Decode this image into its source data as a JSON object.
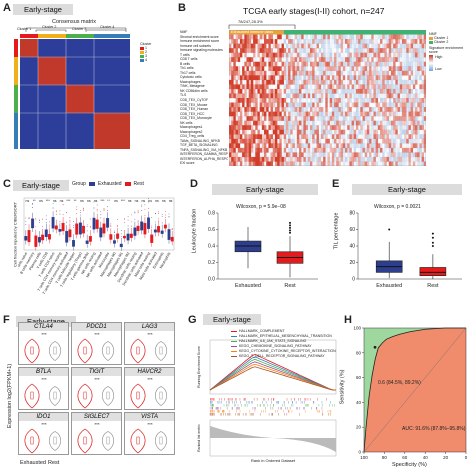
{
  "panels": {
    "A": {
      "letter": "A",
      "badge": "Early-stage",
      "title": "Consensus matrix",
      "clusters": [
        "Cluster 1",
        "Cluster 2",
        "Cluster 3",
        "Cluster 4"
      ],
      "legend_title": "Cluster",
      "legend_items": [
        "1",
        "2",
        "3",
        "4"
      ],
      "legend_colors": [
        "#e41a1c",
        "#f0b01a",
        "#4daf4a",
        "#377eb8"
      ]
    },
    "B": {
      "letter": "B",
      "title": "TCGA early stages(I-II) cohort, n=247",
      "bracket_label": "78/247,28.3%",
      "group_label": "Exhausted immune class",
      "rows": [
        "NMF",
        "Stromal enrichment score",
        "Immune enrichment score",
        "Immune cell subsets",
        "Immune signaling molecules",
        "T cells",
        "CD8 T cells",
        "B cells",
        "Th1 cells",
        "Th17 cells",
        "Cytotoxic cells",
        "Macrophages",
        "T/NK, Metagene",
        "NK CD56dim cells",
        "TLS",
        "CD8_TEX_CyTOF",
        "CD8_TEX_Mouse",
        "CD8_TEX_Human",
        "CD8_TEX_HCC",
        "CD8_TEX_Monocyte",
        "NK cells",
        "Macrophages1",
        "Macrophages2",
        "CD4_Treg_cells",
        "TAMs_SIGNALING_NFKB",
        "TGF_BETA_SIGNALING",
        "TNFA_SIGNALING_VIA_NFKB",
        "INTERFERON_GAMMA_RESPONSE",
        "INTERFERON_ALPHA_RESPONSE",
        "EXi score"
      ],
      "legend": {
        "nmf_title": "NMF",
        "nmf_items": [
          "Cluster 1",
          "Cluster 2"
        ],
        "sig_title": "Signature enrichment score",
        "high": "High",
        "low": "Low"
      }
    },
    "C": {
      "letter": "C",
      "badge": "Early-stage",
      "ylabel": "Cell fraction inputed by CIBERSORT",
      "legend_prefix": "Group",
      "legend_exhausted": "Exhausted",
      "legend_rest": "Rest",
      "cells": [
        "B cells naive",
        "B cells memory",
        "Plasma cells",
        "T cells CD8",
        "T cells CD4 naive",
        "T cells CD4 memory resting",
        "T cells CD4 memory activated",
        "T cells follicular helper",
        "T cells regulatory (Tregs)",
        "T cells gamma delta",
        "NK cells resting",
        "NK cells activated",
        "Monocytes",
        "Macrophages M0",
        "Macrophages M1",
        "Macrophages M2",
        "Dendritic cells resting",
        "Dendritic cells activated",
        "Mast cells resting",
        "Mast cells activated",
        "Eosinophils",
        "Neutrophils"
      ],
      "sig_marks": [
        "ns",
        "**",
        "ns",
        "***",
        "ns",
        "ns",
        "***",
        "**",
        "ns",
        "ns",
        "ns",
        "***",
        "*",
        "ns",
        "***",
        "ns",
        "ns",
        "ns",
        "ns",
        "ns",
        "ns",
        "ns"
      ]
    },
    "D": {
      "letter": "D",
      "badge": "Early-stage",
      "ylabel": "Leukocyte fraction",
      "stat": "Wilcoxon, p = 5.9e−08",
      "xcats": [
        "Exhausted",
        "Rest"
      ],
      "yticks": [
        "0.0",
        "0.2",
        "0.4",
        "0.6",
        "0.8"
      ]
    },
    "E": {
      "letter": "E",
      "badge": "Early-stage",
      "ylabel": "TIL percentage",
      "stat": "Wilcoxon, p = 0.0021",
      "xcats": [
        "Exhausted",
        "Rest"
      ],
      "yticks": [
        "0",
        "20",
        "40",
        "60",
        "80"
      ]
    },
    "F": {
      "letter": "F",
      "badge": "Early-stage",
      "ylabel": "Expression log2(FPKM+1)",
      "genes": [
        "CTLA4",
        "PDCD1",
        "LAG3",
        "BTLA",
        "TIGIT",
        "HAVCR2",
        "IDO1",
        "SIGLEC7",
        "VISTA"
      ],
      "sig_marks": [
        "***",
        "***",
        "***",
        "***",
        "***",
        "***",
        "***",
        "***",
        "***"
      ],
      "xcats": [
        "Exhausted",
        "Rest"
      ]
    },
    "G": {
      "letter": "G",
      "badge": "Early-stage",
      "pathways": [
        "HALLMARK_COMPLEMENT",
        "HALLMARK_EPITHELIAL_MESENCHYMAL_TRANSITION",
        "HALLMARK_IL6_JAK_STAT3_SIGNALING",
        "KEGG_CHEMOKINE_SIGNALING_PATHWAY",
        "KEGG_CYTOKINE_CYTOKINE_RECEPTOR_INTERACTION",
        "KEGG_T_CELL_RECEPTOR_SIGNALING_PATHWAY"
      ],
      "pathway_colors": [
        "#e41a1c",
        "#377eb8",
        "#4daf4a",
        "#984ea3",
        "#ff7f00",
        "#a65628"
      ],
      "ylabel_top": "Running Enrichment Score",
      "ylabel_bottom": "Ranked list metric",
      "xlabel": "Rank in Ordered Dataset"
    },
    "H": {
      "letter": "H",
      "ylabel": "Sensitivity (%)",
      "xlabel": "Specificity (%)",
      "point_label": "0.6 (84.5%, 89.2%)",
      "auc_label": "AUC: 91.6% (87.8%–95.8%)",
      "xticks": [
        "100",
        "80",
        "60",
        "40",
        "20",
        "0"
      ],
      "yticks": [
        "0",
        "20",
        "40",
        "60",
        "80",
        "100"
      ]
    }
  },
  "chart_data": [
    {
      "type": "heatmap",
      "title": "Consensus matrix",
      "clusters": 4,
      "cluster_blocks": [
        0.12,
        0.2,
        0.2,
        0.48
      ]
    },
    {
      "type": "bar",
      "name": "D",
      "categories": [
        "Exhausted",
        "Rest"
      ],
      "ylabel": "Leukocyte fraction",
      "ylim": [
        0,
        0.8
      ],
      "boxes": [
        {
          "min": 0.13,
          "q1": 0.33,
          "median": 0.4,
          "q3": 0.46,
          "max": 0.63
        },
        {
          "min": 0.02,
          "q1": 0.19,
          "median": 0.26,
          "q3": 0.33,
          "max": 0.52
        }
      ]
    },
    {
      "type": "bar",
      "name": "E",
      "categories": [
        "Exhausted",
        "Rest"
      ],
      "ylabel": "TIL percentage",
      "ylim": [
        0,
        80
      ],
      "boxes": [
        {
          "min": 1,
          "q1": 8,
          "median": 15,
          "q3": 22,
          "max": 45
        },
        {
          "min": 0,
          "q1": 4,
          "median": 8,
          "q3": 14,
          "max": 30
        }
      ]
    },
    {
      "type": "line",
      "name": "H",
      "xlabel": "Specificity (%)",
      "ylabel": "Sensitivity (%)",
      "x": [
        100,
        98,
        95,
        92,
        89,
        86,
        82,
        78,
        72,
        65,
        55,
        40,
        20,
        0
      ],
      "y": [
        0,
        20,
        45,
        62,
        75,
        84,
        88,
        91,
        93,
        95,
        97,
        99,
        100,
        100
      ]
    }
  ]
}
